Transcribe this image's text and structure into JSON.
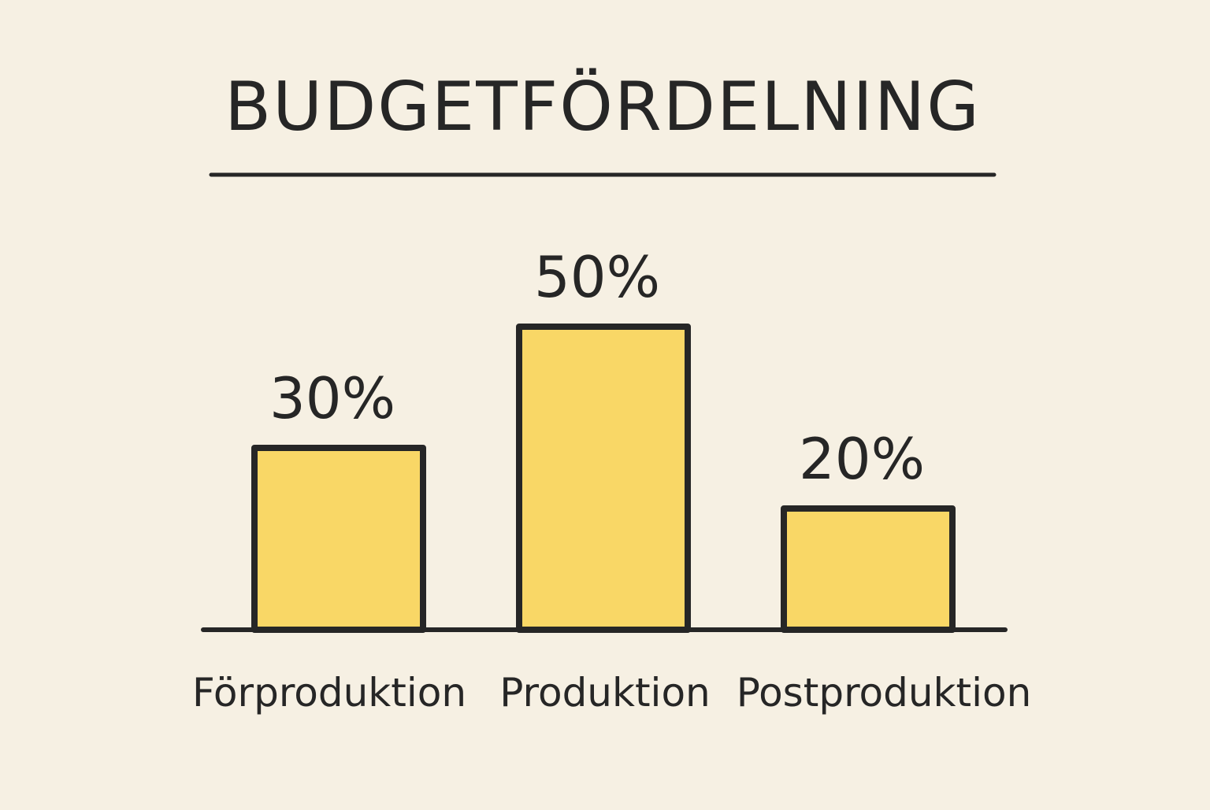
{
  "chart_data": {
    "type": "bar",
    "title": "BUDGETFÖRDELNING",
    "categories": [
      "Förproduktion",
      "Produktion",
      "Postproduktion"
    ],
    "values": [
      30,
      50,
      20
    ],
    "value_labels": [
      "30%",
      "50%",
      "20%"
    ],
    "xlabel": "",
    "ylabel": "",
    "ylim": [
      0,
      60
    ],
    "grid": false,
    "legend": "none"
  },
  "colors": {
    "background": "#f6f0e3",
    "bar_fill": "#f9d766",
    "stroke": "#262626"
  }
}
